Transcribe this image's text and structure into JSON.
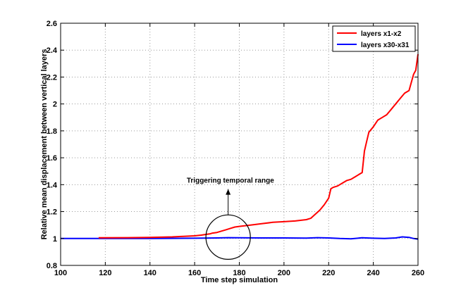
{
  "chart_data": {
    "type": "line",
    "xlabel": "Time step simulation",
    "ylabel": "Relative mean displacement between vertical layers",
    "xlim": [
      100,
      260
    ],
    "ylim": [
      0.8,
      2.6
    ],
    "xticks": [
      "100",
      "120",
      "140",
      "160",
      "180",
      "200",
      "220",
      "240",
      "260"
    ],
    "yticks": [
      "0.8",
      "1",
      "1.2",
      "1.4",
      "1.6",
      "1.8",
      "2",
      "2.2",
      "2.4",
      "2.6"
    ],
    "grid": true,
    "legend_position": "top-right",
    "series": [
      {
        "name": "layers x1-x2",
        "color": "#ff0000",
        "x": [
          117,
          130,
          140,
          150,
          155,
          160,
          163,
          165,
          167,
          168,
          170,
          172,
          174,
          176,
          178,
          180,
          185,
          190,
          195,
          200,
          205,
          210,
          212,
          214,
          216,
          218,
          220,
          221,
          222,
          224,
          226,
          228,
          230,
          232,
          234,
          235,
          236,
          237,
          238,
          240,
          242,
          244,
          246,
          248,
          250,
          252,
          254,
          256,
          258,
          259,
          260
        ],
        "y": [
          1.005,
          1.006,
          1.008,
          1.012,
          1.016,
          1.02,
          1.025,
          1.03,
          1.035,
          1.04,
          1.045,
          1.055,
          1.065,
          1.075,
          1.085,
          1.09,
          1.1,
          1.11,
          1.12,
          1.125,
          1.13,
          1.14,
          1.15,
          1.18,
          1.21,
          1.25,
          1.3,
          1.37,
          1.38,
          1.39,
          1.41,
          1.43,
          1.44,
          1.46,
          1.48,
          1.49,
          1.65,
          1.72,
          1.79,
          1.83,
          1.88,
          1.9,
          1.92,
          1.96,
          2.0,
          2.04,
          2.08,
          2.1,
          2.22,
          2.25,
          2.37
        ]
      },
      {
        "name": "layers x30-x31",
        "color": "#0000ff",
        "x": [
          100,
          120,
          140,
          160,
          170,
          175,
          180,
          190,
          200,
          210,
          215,
          220,
          225,
          230,
          235,
          240,
          245,
          250,
          253,
          256,
          258,
          260
        ],
        "y": [
          1.0,
          1.0,
          1.0,
          1.002,
          1.004,
          1.006,
          1.005,
          1.004,
          1.004,
          1.003,
          1.006,
          1.004,
          1.0,
          0.998,
          1.005,
          1.002,
          1.0,
          1.004,
          1.012,
          1.008,
          1.0,
          0.995
        ]
      }
    ],
    "annotations": [
      {
        "text": "Triggering temporal range",
        "x": 176,
        "y": 1.43
      }
    ],
    "circle": {
      "center_x": 175,
      "center_y": 1.01,
      "radius_y": 0.165
    }
  }
}
